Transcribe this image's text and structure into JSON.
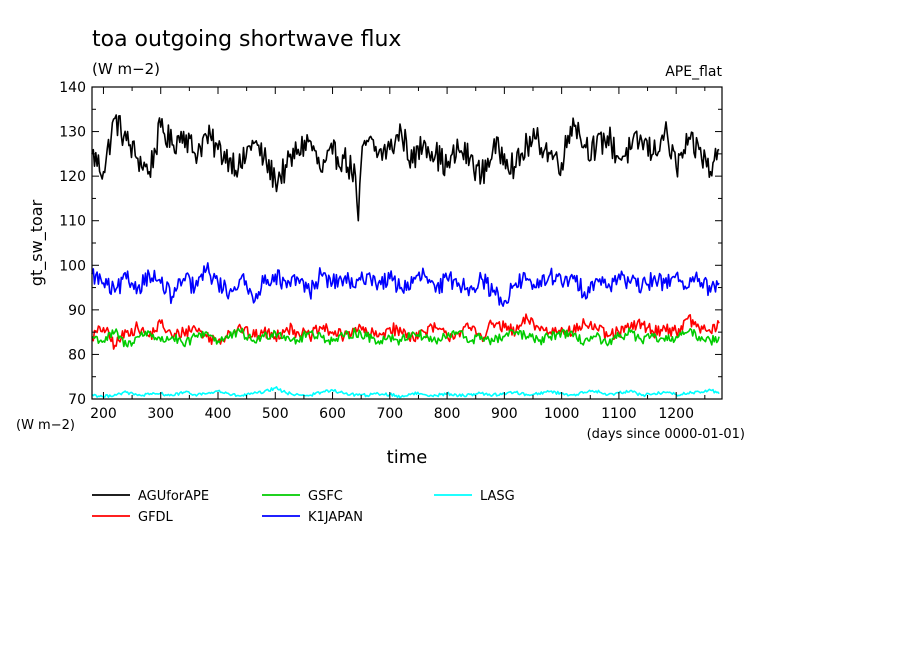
{
  "chart_data": {
    "type": "line",
    "title": "toa outgoing shortwave flux",
    "subtitle": "(W m−2)",
    "tag": "APE_flat",
    "ylabel": "gt_sw_toar",
    "yunit": "(W m−2)",
    "xlabel": "time",
    "xunit": "(days since 0000-01-01)",
    "xlim": [
      180,
      1280
    ],
    "ylim": [
      70,
      140
    ],
    "xticks": [
      200,
      300,
      400,
      500,
      600,
      700,
      800,
      900,
      1000,
      1100,
      1200
    ],
    "yticks": [
      70,
      80,
      90,
      100,
      110,
      120,
      130,
      140
    ],
    "xtick_labels": [
      "200",
      "300",
      "400",
      "500",
      "600",
      "700",
      "800",
      "900",
      "1000",
      "1100",
      "1200"
    ],
    "ytick_labels": [
      "70",
      "80",
      "90",
      "100",
      "110",
      "120",
      "130",
      "140"
    ],
    "grid": false,
    "legend_position": "below",
    "series": [
      {
        "name": "AGUforAPE",
        "color": "#000000",
        "x": [
          180,
          200,
          220,
          240,
          260,
          280,
          300,
          320,
          340,
          360,
          380,
          400,
          420,
          440,
          460,
          480,
          500,
          520,
          540,
          560,
          580,
          600,
          620,
          640,
          645,
          650,
          660,
          680,
          700,
          720,
          740,
          760,
          780,
          800,
          820,
          840,
          860,
          880,
          900,
          920,
          940,
          960,
          980,
          1000,
          1020,
          1040,
          1060,
          1080,
          1100,
          1120,
          1140,
          1160,
          1180,
          1200,
          1220,
          1240,
          1260,
          1275
        ],
        "y": [
          125,
          121,
          133,
          128,
          124,
          121,
          131,
          127,
          130,
          125,
          129,
          126,
          124,
          122,
          128,
          124,
          119,
          122,
          126,
          128,
          121,
          125,
          124,
          120,
          110,
          123,
          128,
          125,
          126,
          130,
          123,
          128,
          125,
          122,
          126,
          124,
          120,
          126,
          125,
          122,
          127,
          128,
          125,
          123,
          133,
          127,
          126,
          129,
          124,
          126,
          128,
          125,
          130,
          122,
          127,
          126,
          121,
          126
        ]
      },
      {
        "name": "GFDL",
        "color": "#ff0000",
        "x": [
          180,
          200,
          220,
          240,
          260,
          280,
          300,
          320,
          340,
          360,
          380,
          400,
          420,
          440,
          460,
          480,
          500,
          520,
          540,
          560,
          580,
          600,
          620,
          640,
          660,
          680,
          700,
          720,
          740,
          760,
          780,
          800,
          820,
          840,
          860,
          880,
          900,
          920,
          940,
          960,
          980,
          1000,
          1020,
          1040,
          1060,
          1080,
          1100,
          1120,
          1140,
          1160,
          1180,
          1200,
          1220,
          1240,
          1260,
          1275
        ],
        "y": [
          84,
          86,
          82,
          85,
          86,
          84,
          87,
          84,
          85,
          86,
          84,
          83,
          85,
          86,
          84,
          85,
          84,
          86,
          85,
          84,
          86,
          85,
          84,
          86,
          85,
          84,
          86,
          85,
          84,
          85,
          86,
          84,
          85,
          86,
          84,
          87,
          86,
          85,
          88,
          86,
          85,
          86,
          85,
          87,
          86,
          84,
          85,
          86,
          87,
          85,
          86,
          85,
          88,
          86,
          85,
          87
        ]
      },
      {
        "name": "GSFC",
        "color": "#00cc00",
        "x": [
          180,
          200,
          220,
          240,
          260,
          280,
          300,
          320,
          340,
          360,
          380,
          400,
          420,
          440,
          460,
          480,
          500,
          520,
          540,
          560,
          580,
          600,
          620,
          640,
          660,
          680,
          700,
          720,
          740,
          760,
          780,
          800,
          820,
          840,
          860,
          880,
          900,
          920,
          940,
          960,
          980,
          1000,
          1020,
          1040,
          1060,
          1080,
          1100,
          1120,
          1140,
          1160,
          1180,
          1200,
          1220,
          1240,
          1260,
          1275
        ],
        "y": [
          84,
          83,
          85,
          82,
          84,
          85,
          83,
          84,
          82,
          84,
          85,
          83,
          84,
          85,
          83,
          84,
          85,
          84,
          83,
          85,
          84,
          83,
          84,
          85,
          84,
          83,
          84,
          83,
          85,
          84,
          83,
          84,
          85,
          83,
          84,
          83,
          84,
          85,
          84,
          83,
          84,
          85,
          84,
          83,
          84,
          82,
          84,
          85,
          83,
          84,
          83,
          84,
          85,
          84,
          83,
          84
        ]
      },
      {
        "name": "K1JAPAN",
        "color": "#0000ff",
        "x": [
          180,
          200,
          220,
          240,
          260,
          280,
          300,
          320,
          340,
          360,
          380,
          400,
          420,
          440,
          460,
          480,
          500,
          520,
          540,
          560,
          580,
          600,
          620,
          640,
          660,
          680,
          700,
          720,
          740,
          760,
          780,
          800,
          820,
          840,
          860,
          880,
          900,
          920,
          940,
          960,
          980,
          1000,
          1020,
          1040,
          1060,
          1080,
          1100,
          1120,
          1140,
          1160,
          1180,
          1200,
          1220,
          1240,
          1260,
          1275
        ],
        "y": [
          98,
          96,
          94,
          97,
          95,
          98,
          96,
          93,
          97,
          95,
          99,
          96,
          94,
          97,
          93,
          96,
          98,
          95,
          97,
          94,
          98,
          96,
          97,
          95,
          98,
          96,
          97,
          95,
          96,
          98,
          94,
          97,
          96,
          95,
          97,
          94,
          92,
          96,
          97,
          95,
          98,
          96,
          97,
          94,
          97,
          95,
          98,
          96,
          95,
          97,
          96,
          98,
          95,
          97,
          94,
          96
        ]
      },
      {
        "name": "LASG",
        "color": "#00ffff",
        "x": [
          180,
          200,
          220,
          240,
          260,
          280,
          300,
          320,
          340,
          360,
          380,
          400,
          420,
          440,
          460,
          480,
          500,
          520,
          540,
          560,
          580,
          600,
          620,
          640,
          660,
          680,
          700,
          720,
          740,
          760,
          780,
          800,
          820,
          840,
          860,
          880,
          900,
          920,
          940,
          960,
          980,
          1000,
          1020,
          1040,
          1060,
          1080,
          1100,
          1120,
          1140,
          1160,
          1180,
          1200,
          1220,
          1240,
          1260,
          1275
        ],
        "y": [
          71,
          70.5,
          71,
          71.5,
          70.8,
          71,
          71.2,
          70.8,
          71.5,
          71,
          71.2,
          71.8,
          71,
          70.7,
          71.2,
          71.5,
          72.5,
          71.3,
          71,
          70.8,
          71.5,
          72,
          71.2,
          71,
          70.8,
          71.2,
          71,
          70.5,
          71.3,
          71,
          70.8,
          71.2,
          70.7,
          71,
          71.3,
          70.9,
          71.2,
          71.5,
          70.9,
          71.3,
          71.7,
          71.2,
          70.9,
          71.5,
          71.8,
          70.9,
          71.4,
          71.9,
          70.8,
          71.2,
          71.5,
          71,
          71.3,
          71.6,
          72,
          71.2
        ]
      }
    ]
  }
}
